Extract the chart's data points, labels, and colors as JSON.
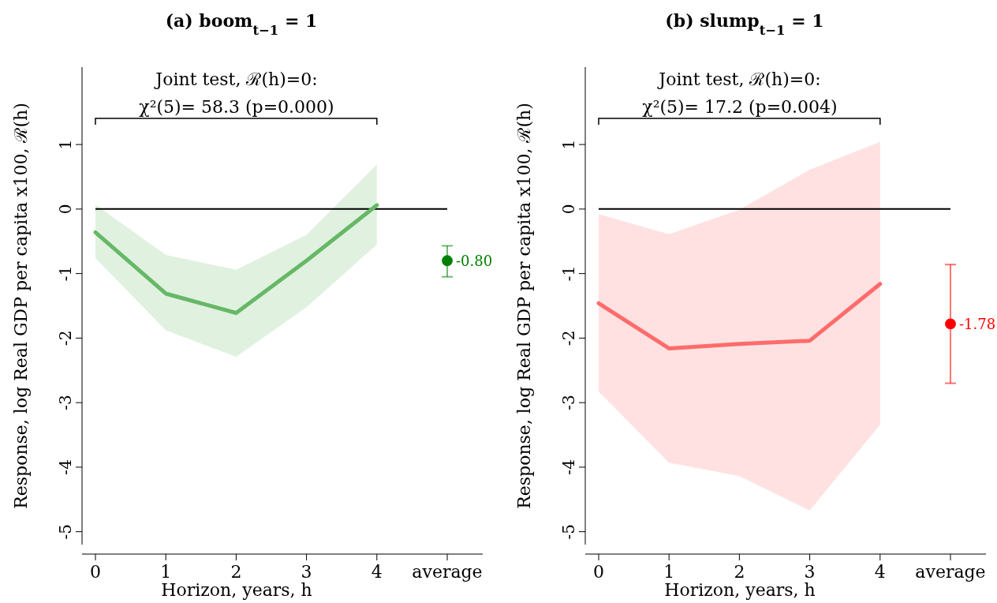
{
  "chart_data": [
    {
      "type": "line",
      "title": "(a) boom$_{t−1}$ = 1",
      "xlabel": "Horizon, years, h",
      "ylabel": "Response, log Real GDP per capita x100, ℛ(h)",
      "categories": [
        "0",
        "1",
        "2",
        "3",
        "4",
        "average"
      ],
      "ylim": [
        -5.2,
        2.2
      ],
      "yticks": [
        -5,
        -4,
        -3,
        -2,
        -1,
        0,
        1
      ],
      "grid": false,
      "ref_lines": [
        {
          "axis": "y",
          "value": 0,
          "color": "#000000"
        }
      ],
      "annotations": [
        "Joint test, ℛ(h)=0:",
        "χ²(5)= 58.3 (p=0.000)"
      ],
      "series": [
        {
          "type": "line",
          "color": "#66b866",
          "values": [
            -0.36,
            -1.31,
            -1.61,
            -0.8,
            0.06,
            null
          ],
          "lower": [
            -0.76,
            -1.88,
            -2.29,
            -1.52,
            -0.55,
            null
          ],
          "upper": [
            0.07,
            -0.71,
            -0.94,
            -0.4,
            0.69,
            null
          ]
        },
        {
          "type": "scatter",
          "color": "#008000",
          "marker": "circle",
          "values": [
            null,
            null,
            null,
            null,
            null,
            -0.8
          ],
          "errors": [
            null,
            null,
            null,
            null,
            null,
            [
              -1.05,
              -0.57
            ]
          ],
          "value_labels": [
            null,
            null,
            null,
            null,
            null,
            "-0.80"
          ]
        }
      ]
    },
    {
      "type": "line",
      "title": "(b) slump$_{t−1}$ = 1",
      "xlabel": "Horizon, years, h",
      "ylabel": "Response, log Real GDP per capita x100, ℛ(h)",
      "categories": [
        "0",
        "1",
        "2",
        "3",
        "4",
        "average"
      ],
      "ylim": [
        -5.2,
        2.2
      ],
      "yticks": [
        -5,
        -4,
        -3,
        -2,
        -1,
        0,
        1
      ],
      "grid": false,
      "ref_lines": [
        {
          "axis": "y",
          "value": 0,
          "color": "#000000"
        }
      ],
      "annotations": [
        "Joint test, ℛ(h)=0:",
        "χ²(5)= 17.2 (p=0.004)"
      ],
      "series": [
        {
          "type": "line",
          "color": "#ff6b6b",
          "values": [
            -1.46,
            -2.16,
            -2.09,
            -2.04,
            -1.16,
            null
          ],
          "lower": [
            -2.83,
            -3.93,
            -4.14,
            -4.67,
            -3.34,
            null
          ],
          "upper": [
            -0.08,
            -0.39,
            -0.01,
            0.61,
            1.04,
            null
          ]
        },
        {
          "type": "scatter",
          "color": "#ff0000",
          "marker": "circle",
          "values": [
            null,
            null,
            null,
            null,
            null,
            -1.78
          ],
          "errors": [
            null,
            null,
            null,
            null,
            null,
            [
              -2.7,
              -0.86
            ]
          ],
          "value_labels": [
            null,
            null,
            null,
            null,
            null,
            "-1.78"
          ]
        }
      ]
    }
  ]
}
